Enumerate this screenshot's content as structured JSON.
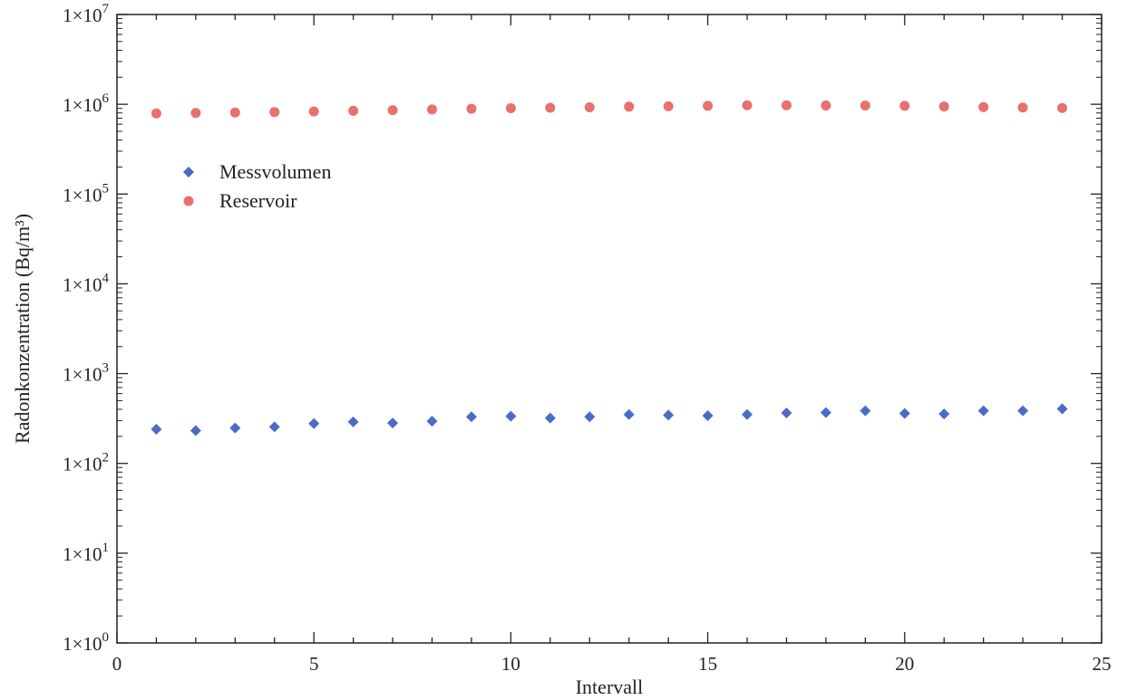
{
  "chart_data": {
    "type": "scatter",
    "xlabel": "Intervall",
    "ylabel": "Radonkonzentration (Bq/m³)",
    "x_ticks": [
      "0",
      "5",
      "10",
      "15",
      "20",
      "25"
    ],
    "y_ticks": [
      {
        "base": "1×10",
        "exp": "0"
      },
      {
        "base": "1×10",
        "exp": "1"
      },
      {
        "base": "1×10",
        "exp": "2"
      },
      {
        "base": "1×10",
        "exp": "3"
      },
      {
        "base": "1×10",
        "exp": "4"
      },
      {
        "base": "1×10",
        "exp": "5"
      },
      {
        "base": "1×10",
        "exp": "6"
      },
      {
        "base": "1×10",
        "exp": "7"
      }
    ],
    "xlim": [
      0,
      25
    ],
    "ylim": [
      1,
      10000000
    ],
    "y_scale": "log",
    "grid": false,
    "legend_position": "upper-left",
    "x": [
      1,
      2,
      3,
      4,
      5,
      6,
      7,
      8,
      9,
      10,
      11,
      12,
      13,
      14,
      15,
      16,
      17,
      18,
      19,
      20,
      21,
      22,
      23,
      24
    ],
    "series": [
      {
        "name": "Messvolumen",
        "marker": "diamond",
        "color": "#4a6bc8",
        "values": [
          240,
          232,
          248,
          255,
          278,
          290,
          282,
          295,
          330,
          335,
          320,
          330,
          350,
          345,
          340,
          350,
          365,
          368,
          385,
          360,
          355,
          385,
          385,
          405
        ]
      },
      {
        "name": "Reservoir",
        "marker": "circle",
        "color": "#e8706e",
        "values": [
          790000,
          800000,
          810000,
          820000,
          830000,
          845000,
          860000,
          875000,
          890000,
          905000,
          915000,
          925000,
          940000,
          950000,
          960000,
          975000,
          975000,
          970000,
          970000,
          960000,
          945000,
          930000,
          920000,
          910000
        ]
      }
    ]
  }
}
